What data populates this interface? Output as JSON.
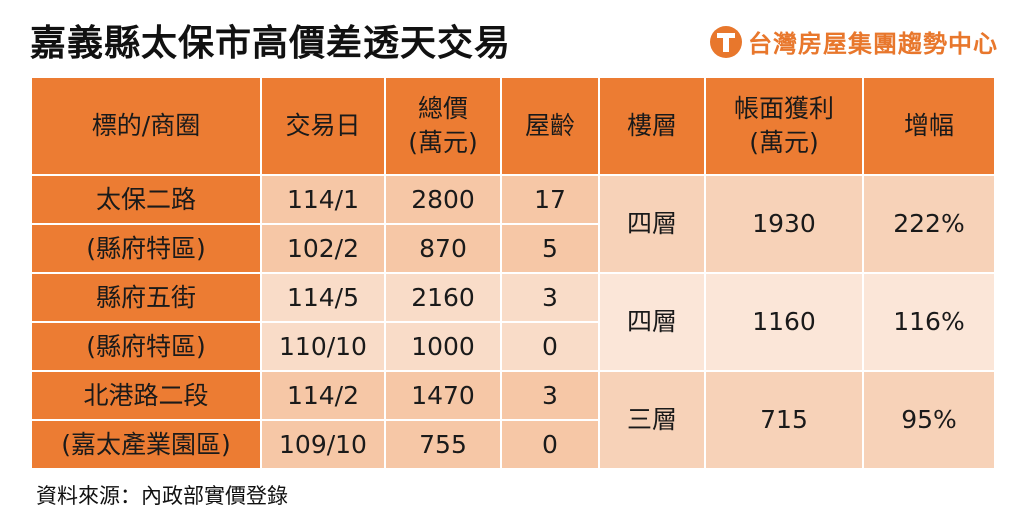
{
  "title": "嘉義縣太保市高價差透天交易",
  "brand": {
    "name": "台灣房屋集團趨勢中心",
    "icon": "t-logo-icon",
    "color": "#e8772c"
  },
  "headers": {
    "target": "標的/商圈",
    "date": "交易日",
    "price_line1": "總價",
    "price_line2": "(萬元)",
    "age": "屋齡",
    "floors": "樓層",
    "profit_line1": "帳面獲利",
    "profit_line2": "(萬元)",
    "increase": "增幅"
  },
  "groups": [
    {
      "name": "太保二路",
      "area": "(縣府特區)",
      "rows": [
        {
          "date": "114/1",
          "price": "2800",
          "age": "17"
        },
        {
          "date": "102/2",
          "price": "870",
          "age": "5"
        }
      ],
      "floors": "四層",
      "profit": "1930",
      "increase": "222%"
    },
    {
      "name": "縣府五街",
      "area": "(縣府特區)",
      "rows": [
        {
          "date": "114/5",
          "price": "2160",
          "age": "3"
        },
        {
          "date": "110/10",
          "price": "1000",
          "age": "0"
        }
      ],
      "floors": "四層",
      "profit": "1160",
      "increase": "116%"
    },
    {
      "name": "北港路二段",
      "area": "(嘉太產業園區)",
      "rows": [
        {
          "date": "114/2",
          "price": "1470",
          "age": "3"
        },
        {
          "date": "109/10",
          "price": "755",
          "age": "0"
        }
      ],
      "floors": "三層",
      "profit": "715",
      "increase": "95%"
    }
  ],
  "source": "資料來源：內政部實價登錄"
}
